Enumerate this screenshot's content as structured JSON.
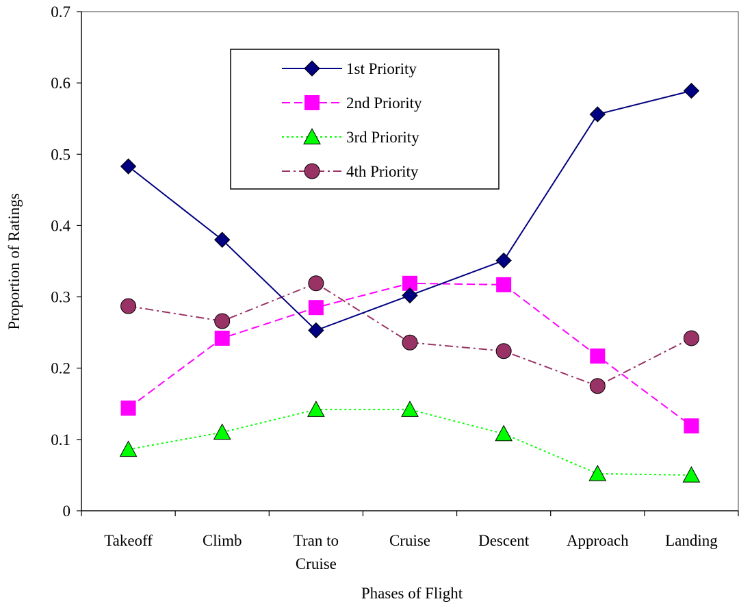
{
  "chart_data": {
    "type": "line",
    "title": "",
    "xlabel": "Phases of Flight",
    "ylabel": "Proportion of Ratings",
    "ylim": [
      0,
      0.7
    ],
    "yticks": [
      "0",
      "0.1",
      "0.2",
      "0.3",
      "0.4",
      "0.5",
      "0.6",
      "0.7"
    ],
    "categories": [
      "Takeoff",
      "Climb",
      "Tran to Cruise",
      "Cruise",
      "Descent",
      "Approach",
      "Landing"
    ],
    "category_lines": [
      [
        "Takeoff"
      ],
      [
        "Climb"
      ],
      [
        "Tran to",
        "Cruise"
      ],
      [
        "Cruise"
      ],
      [
        "Descent"
      ],
      [
        "Approach"
      ],
      [
        "Landing"
      ]
    ],
    "grid": false,
    "legend_position": "top-center",
    "series": [
      {
        "name": "1st Priority",
        "values": [
          0.483,
          0.38,
          0.253,
          0.302,
          0.351,
          0.556,
          0.589
        ],
        "color": "#000080",
        "marker": "diamond",
        "dash": "solid"
      },
      {
        "name": "2nd Priority",
        "values": [
          0.144,
          0.242,
          0.285,
          0.319,
          0.317,
          0.217,
          0.119
        ],
        "color": "#ff00ff",
        "marker": "square",
        "dash": "dashed"
      },
      {
        "name": "3rd Priority",
        "values": [
          0.086,
          0.11,
          0.142,
          0.142,
          0.108,
          0.052,
          0.05
        ],
        "color": "#00ff00",
        "marker": "triangle",
        "dash": "dotted"
      },
      {
        "name": "4th Priority",
        "values": [
          0.287,
          0.266,
          0.319,
          0.236,
          0.224,
          0.175,
          0.242
        ],
        "color": "#993366",
        "marker": "circle",
        "dash": "dashdot"
      }
    ]
  }
}
